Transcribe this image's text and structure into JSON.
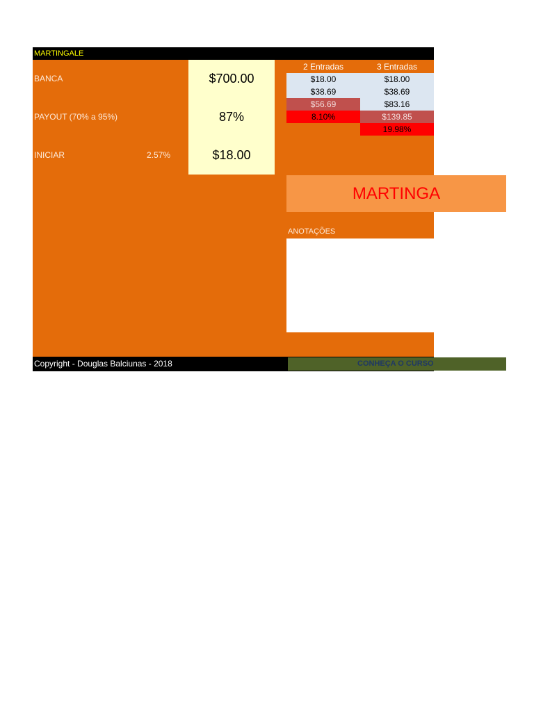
{
  "title": "MARTINGALE",
  "labels": {
    "banca": "BANCA",
    "payout": "PAYOUT (70% a 95%)",
    "iniciar": "INICIAR",
    "iniciar_pct": "2.57%"
  },
  "inputs": {
    "banca": "$700.00",
    "payout": "87%",
    "iniciar": "$18.00"
  },
  "table": {
    "col2_header": "2 Entradas",
    "col3_header": "3 Entradas",
    "col2": [
      "$18.00",
      "$38.69",
      "$56.69",
      "8.10%"
    ],
    "col3": [
      "$18.00",
      "$38.69",
      "$83.16",
      "$139.85",
      "19.98%"
    ]
  },
  "banner": "MARTINGA",
  "notes_label": "ANOTAÇÕES",
  "footer": {
    "copyright": "Copyright - Douglas Balciunas - 2018",
    "curso": "CONHEÇA O CURSO"
  },
  "colors": {
    "sheet": "#e46c0a",
    "input_bg": "#ffffcc",
    "title_text": "#ffff00",
    "banner_bg": "#f79646",
    "banner_text": "#ff0000",
    "curso_bg": "#4f6228"
  }
}
